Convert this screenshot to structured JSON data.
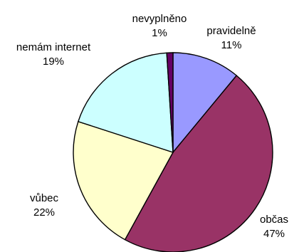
{
  "chart_data": {
    "type": "pie",
    "title": "",
    "slices": [
      {
        "name": "pravidelně",
        "value": 11,
        "value_label": "11%",
        "color": "#9999ff"
      },
      {
        "name": "občas",
        "value": 47,
        "value_label": "47%",
        "color": "#993366"
      },
      {
        "name": "vůbec",
        "value": 22,
        "value_label": "22%",
        "color": "#ffffcc"
      },
      {
        "name": "nemám internet",
        "value": 19,
        "value_label": "19%",
        "color": "#ccffff"
      },
      {
        "name": "nevyplněno",
        "value": 1,
        "value_label": "1%",
        "color": "#660066"
      }
    ],
    "legend": "none",
    "edge_color": "#000000"
  }
}
